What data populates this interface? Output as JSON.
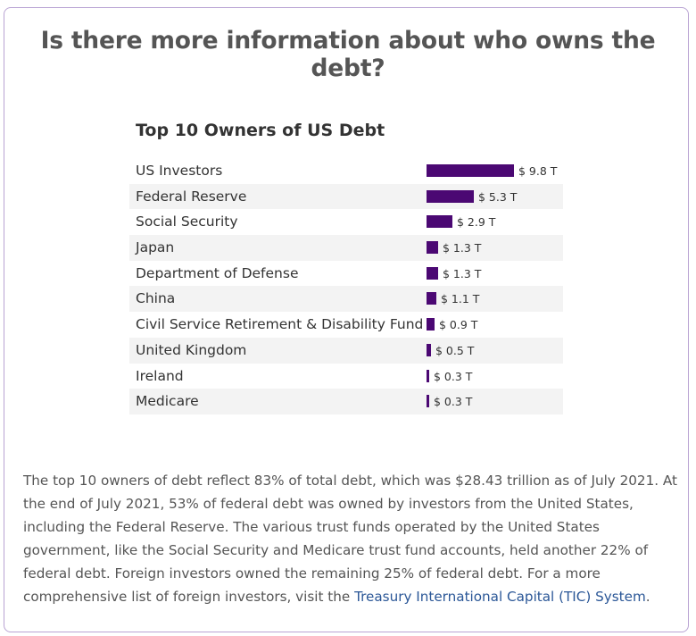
{
  "heading": "Is there more information about who owns the debt?",
  "chart_data": {
    "type": "bar",
    "orientation": "horizontal",
    "title": "Top 10 Owners of US Debt",
    "categories": [
      "US Investors",
      "Federal Reserve",
      "Social Security",
      "Japan",
      "Department of Defense",
      "China",
      "Civil Service Retirement & Disability Fund",
      "United Kingdom",
      "Ireland",
      "Medicare"
    ],
    "values": [
      9.8,
      5.3,
      2.9,
      1.3,
      1.3,
      1.1,
      0.9,
      0.5,
      0.3,
      0.3
    ],
    "value_labels": [
      "$ 9.8 T",
      "$ 5.3 T",
      "$ 2.9 T",
      "$ 1.3 T",
      "$ 1.3 T",
      "$ 1.1 T",
      "$ 0.9 T",
      "$ 0.5 T",
      "$ 0.3 T",
      "$ 0.3 T"
    ],
    "bar_color": "#4b0873",
    "grid": false,
    "legend": "none"
  },
  "description": {
    "text": "The top 10 owners of debt reflect 83% of total debt, which was $28.43 trillion as of July 2021. At the end of July 2021, 53% of federal debt was owned by investors from the United States, including the Federal Reserve. The various trust funds operated by the United States government, like the Social Security and Medicare trust fund accounts, held another 22% of federal debt. Foreign investors owned the remaining 25% of federal debt. For a more comprehensive list of foreign investors, visit the ",
    "link_text": "Treasury International Capital (TIC) System",
    "end": "."
  },
  "colors": {
    "border": "#b9a3d3",
    "link": "#2b5797",
    "bar": "#4b0873"
  }
}
